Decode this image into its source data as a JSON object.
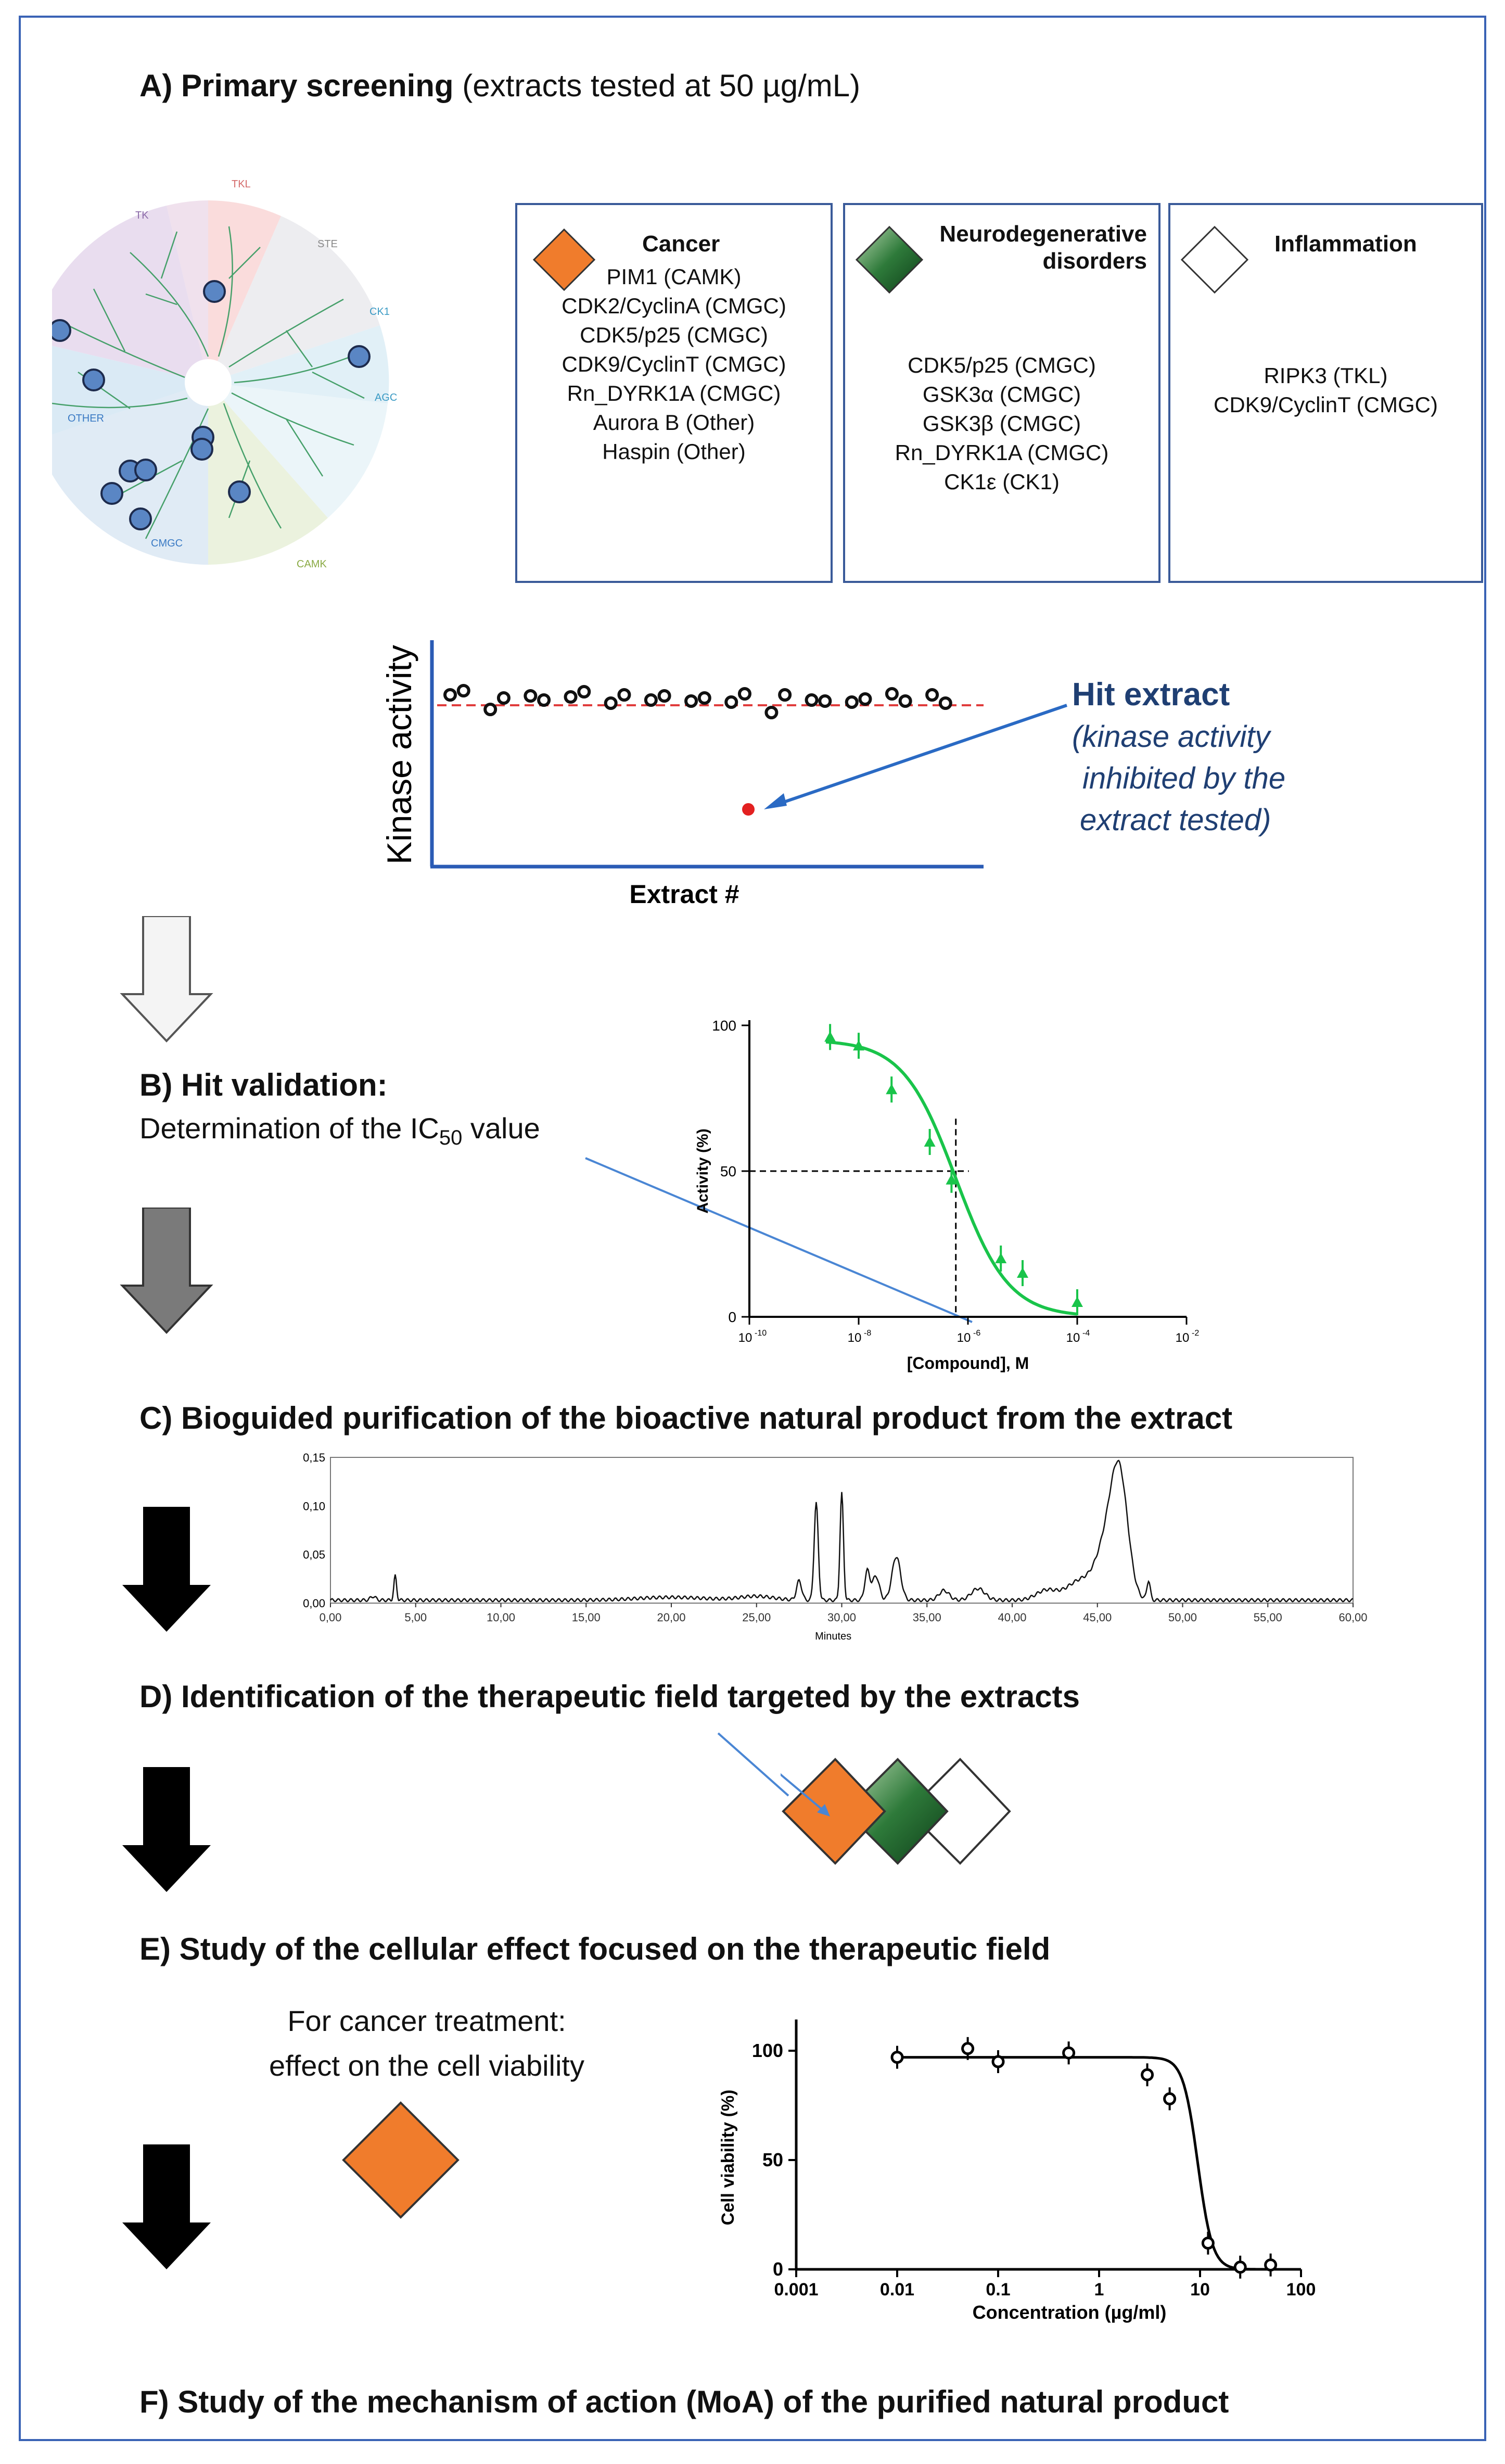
{
  "headings": {
    "a": {
      "bold": "A) Primary screening",
      "normal": " (extracts tested at 50 µg/mL)"
    },
    "b": {
      "bold": "B) Hit validation:",
      "line2_pre": "Determination of the IC",
      "line2_sub": "50",
      "line2_post": " value"
    },
    "c": "C) Bioguided purification of the bioactive natural product from the extract",
    "d": "D) Identification of the therapeutic field targeted by the extracts",
    "e": "E) Study of the cellular effect focused on the therapeutic field",
    "f": "F) Study of the mechanism of action (MoA) of the purified natural product"
  },
  "kinome": {
    "groups": [
      "TK",
      "TKL",
      "STE",
      "CK1",
      "AGC",
      "CAMK",
      "CMGC",
      "OTHER"
    ]
  },
  "fields": [
    {
      "title": "Cancer",
      "color": "#f07c2c",
      "items": [
        "PIM1 (CAMK)",
        "CDK2/CyclinA (CMGC)",
        "CDK5/p25 (CMGC)",
        "CDK9/CyclinT (CMGC)",
        "Rn_DYRK1A (CMGC)",
        "Aurora B (Other)",
        "Haspin (Other)"
      ]
    },
    {
      "title_line1": "Neurodegenerative",
      "title_line2": "disorders",
      "color": "#1d5c2c",
      "items": [
        "CDK5/p25 (CMGC)",
        "GSK3α (CMGC)",
        "GSK3β (CMGC)",
        "Rn_DYRK1A (CMGC)",
        "CK1ε (CK1)"
      ]
    },
    {
      "title": "Inflammation",
      "color": "#ffffff",
      "items": [
        "RIPK3 (TKL)",
        "CDK9/CyclinT (CMGC)"
      ]
    }
  ],
  "screening_plot": {
    "ylabel": "Kinase activity",
    "xlabel": "Extract #",
    "hit_title": "Hit extract",
    "hit_desc": [
      "(kinase activity",
      "inhibited by the",
      "extract tested)"
    ]
  },
  "ic50_chart": {
    "ylabel": "Activity (%)",
    "xlabel": "[Compound], M",
    "yticks": [
      "0",
      "50",
      "100"
    ],
    "xticks": [
      {
        "base": "10",
        "exp": "-10"
      },
      {
        "base": "10",
        "exp": "-8"
      },
      {
        "base": "10",
        "exp": "-6"
      },
      {
        "base": "10",
        "exp": "-4"
      },
      {
        "base": "10",
        "exp": "-2"
      }
    ]
  },
  "chromatogram": {
    "xlabel": "Minutes",
    "yticks": [
      "0,00",
      "0,05",
      "0,10",
      "0,15"
    ],
    "xticks": [
      "0,00",
      "5,00",
      "10,00",
      "15,00",
      "20,00",
      "25,00",
      "30,00",
      "35,00",
      "40,00",
      "45,00",
      "50,00",
      "55,00",
      "60,00"
    ]
  },
  "cancer_text": [
    "For cancer treatment:",
    "effect on the cell viability"
  ],
  "viability_chart": {
    "ylabel": "Cell viability (%)",
    "xlabel": "Concentration (µg/ml)",
    "yticks": [
      "0",
      "50",
      "100"
    ],
    "xticks": [
      "0.001",
      "0.01",
      "0.1",
      "1",
      "10",
      "100"
    ]
  },
  "colors": {
    "cancer": "#f07c2c",
    "neuro": "#1d5c2c",
    "inflammation": "#ffffff",
    "ic50_curve": "#19c44a",
    "hit_text": "#1f3f73"
  },
  "chart_data": [
    {
      "type": "scatter",
      "ylabel": "Activity (%)",
      "xlabel": "[Compound], M",
      "xscale": "log",
      "xlim": [
        1e-10,
        0.01
      ],
      "ylim": [
        0,
        100
      ],
      "points": [
        {
          "x": 3e-09,
          "y": 96
        },
        {
          "x": 1e-08,
          "y": 93
        },
        {
          "x": 4e-08,
          "y": 78
        },
        {
          "x": 2e-07,
          "y": 60
        },
        {
          "x": 5e-07,
          "y": 47
        },
        {
          "x": 4e-06,
          "y": 20
        },
        {
          "x": 1e-05,
          "y": 15
        },
        {
          "x": 0.0001,
          "y": 5
        }
      ]
    },
    {
      "type": "scatter",
      "ylabel": "Cell viability (%)",
      "xlabel": "Concentration (µg/ml)",
      "xscale": "log",
      "xlim": [
        0.001,
        100
      ],
      "ylim": [
        0,
        100
      ],
      "points": [
        {
          "x": 0.01,
          "y": 97
        },
        {
          "x": 0.05,
          "y": 101
        },
        {
          "x": 0.1,
          "y": 95
        },
        {
          "x": 0.5,
          "y": 99
        },
        {
          "x": 3,
          "y": 89
        },
        {
          "x": 5,
          "y": 78
        },
        {
          "x": 12,
          "y": 12
        },
        {
          "x": 25,
          "y": 1
        },
        {
          "x": 50,
          "y": 2
        }
      ]
    }
  ]
}
